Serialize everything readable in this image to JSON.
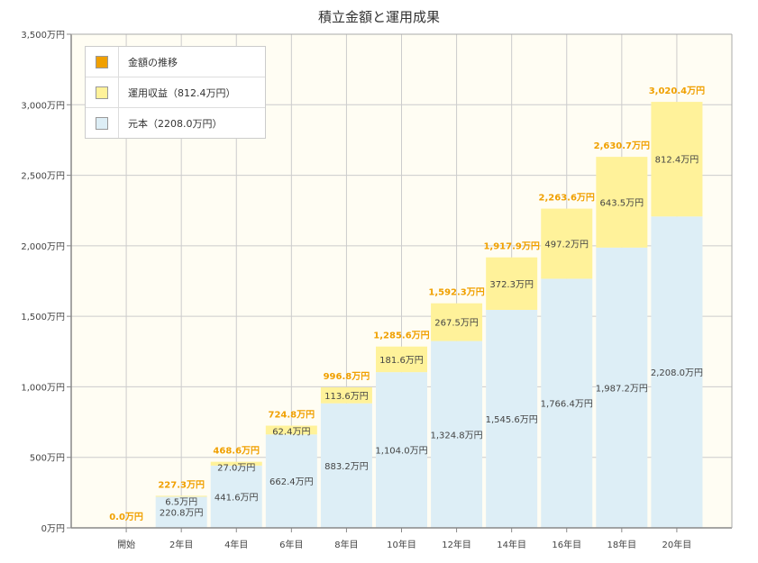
{
  "chart_data": {
    "type": "bar",
    "title": "積立金額と運用成果",
    "categories": [
      "開始",
      "2年目",
      "4年目",
      "6年目",
      "8年目",
      "10年目",
      "12年目",
      "14年目",
      "16年目",
      "18年目",
      "20年目"
    ],
    "series": [
      {
        "name": "元本（2208.0万円）",
        "color": "#ddeef6",
        "values": [
          0,
          220.8,
          441.6,
          662.4,
          883.2,
          1104.0,
          1324.8,
          1545.6,
          1766.4,
          1987.2,
          2208.0
        ],
        "labels": [
          "",
          "220.8万円",
          "441.6万円",
          "662.4万円",
          "883.2万円",
          "1,104.0万円",
          "1,324.8万円",
          "1,545.6万円",
          "1,766.4万円",
          "1,987.2万円",
          "2,208.0万円"
        ]
      },
      {
        "name": "運用収益（812.4万円）",
        "color": "#fff29a",
        "values": [
          0,
          6.5,
          27.0,
          62.4,
          113.6,
          181.6,
          267.5,
          372.3,
          497.2,
          643.5,
          812.4
        ],
        "labels": [
          "",
          "6.5万円",
          "27.0万円",
          "62.4万円",
          "113.6万円",
          "181.6万円",
          "267.5万円",
          "372.3万円",
          "497.2万円",
          "643.5万円",
          "812.4万円"
        ]
      }
    ],
    "totals": {
      "name": "金額の推移",
      "color": "#f0a000",
      "values": [
        0,
        227.3,
        468.6,
        724.8,
        996.8,
        1285.6,
        1592.3,
        1917.9,
        2263.6,
        2630.7,
        3020.4
      ],
      "labels": [
        "0.0万円",
        "227.3万円",
        "468.6万円",
        "724.8万円",
        "996.8万円",
        "1,285.6万円",
        "1,592.3万円",
        "1,917.9万円",
        "2,263.6万円",
        "2,630.7万円",
        "3,020.4万円"
      ]
    },
    "ylim": [
      0,
      3500
    ],
    "yticks": [
      0,
      500,
      1000,
      1500,
      2000,
      2500,
      3000,
      3500
    ],
    "ytick_labels": [
      "0万円",
      "500万円",
      "1,000万円",
      "1,500万円",
      "2,000万円",
      "2,500万円",
      "3,000万円",
      "3,500万円"
    ],
    "grid": true,
    "legend_position": "top-left",
    "colors": {
      "plot_background": "#fffdf3",
      "grid": "#cccccc",
      "axis": "#888888",
      "total_label": "#f0a000"
    }
  }
}
